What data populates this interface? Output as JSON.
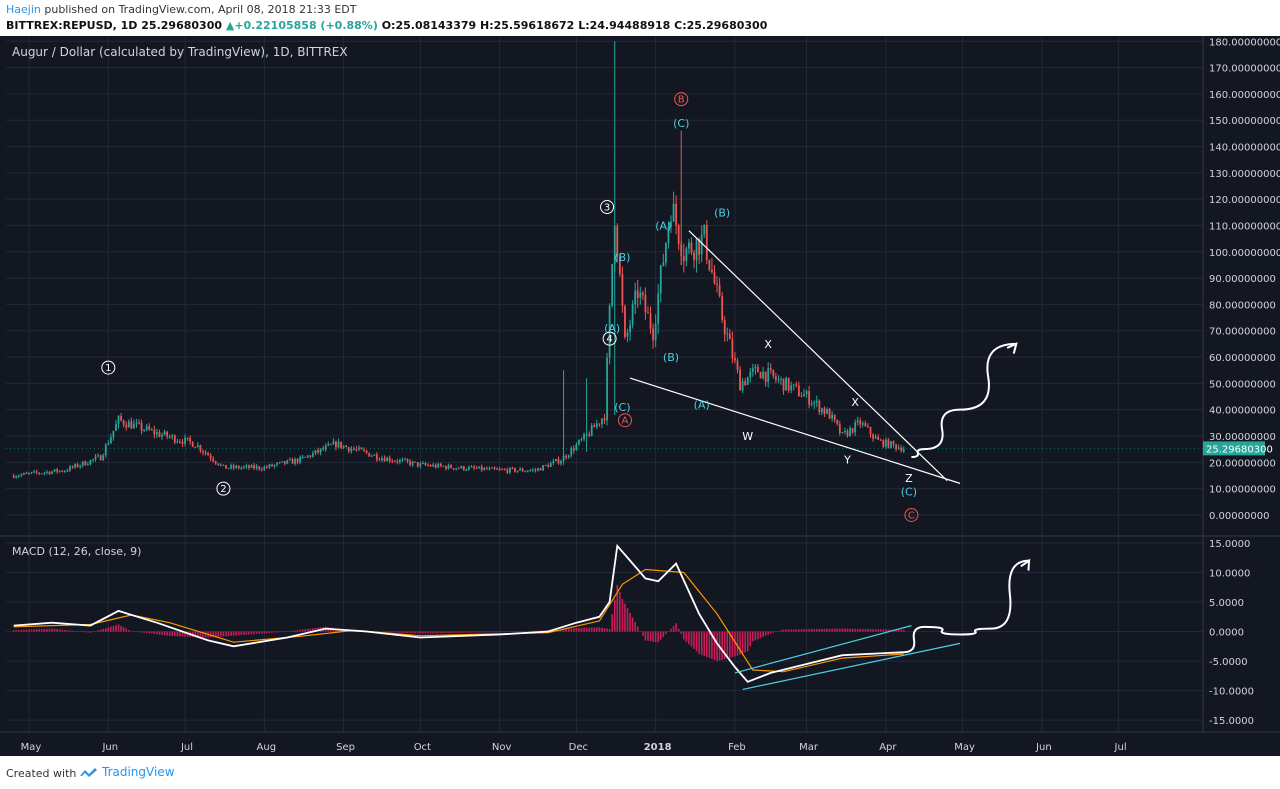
{
  "header": {
    "author": "Haejin",
    "published_text": " published on TradingView.com, April 08, 2018 21:33 EDT",
    "symbol": "BITTREX:REPUSD, 1D",
    "last": "25.29680300",
    "change": "+0.22105858 (+0.88%)",
    "open": "O:25.08143379",
    "high": "H:25.59618672",
    "low": "L:24.94488918",
    "close": "C:25.29680300"
  },
  "colors": {
    "background": "#131722",
    "grid": "#232837",
    "up": "#26a69a",
    "down": "#ef5350",
    "macd_line": "#ffffff",
    "signal_line": "#ff9800",
    "histogram": "#e91e63",
    "wave_cyan": "#4dd0e1",
    "wave_red": "#ef5350",
    "wave_white": "#ffffff",
    "channel": "#4dd0e1"
  },
  "footer": {
    "created_with": "Created with",
    "brand": "TradingView",
    "brand_icon": "tradingview-cloud-icon"
  },
  "chart_data": [
    {
      "type": "candlestick",
      "title": "Augur / Dollar (calculated by TradingView), 1D, BITTREX",
      "x_labels": [
        "May",
        "Jun",
        "Jul",
        "Aug",
        "Sep",
        "Oct",
        "Nov",
        "Dec",
        "2018",
        "Feb",
        "Mar",
        "Apr",
        "May",
        "Jun",
        "Jul"
      ],
      "y_ticks": [
        "180.00000000",
        "170.00000000",
        "160.00000000",
        "150.00000000",
        "140.00000000",
        "130.00000000",
        "120.00000000",
        "110.00000000",
        "100.00000000",
        "90.00000000",
        "80.00000000",
        "70.00000000",
        "60.00000000",
        "50.00000000",
        "40.00000000",
        "30.00000000",
        "20.00000000",
        "10.00000000",
        "0.00000000"
      ],
      "ylim": [
        -8,
        182
      ],
      "last_price_label": "25.29680300",
      "series_close_approx": [
        {
          "x": "2017-04-25",
          "y": 15
        },
        {
          "x": "2017-05-15",
          "y": 17
        },
        {
          "x": "2017-05-29",
          "y": 22
        },
        {
          "x": "2017-06-05",
          "y": 36
        },
        {
          "x": "2017-06-20",
          "y": 31
        },
        {
          "x": "2017-07-05",
          "y": 27
        },
        {
          "x": "2017-07-16",
          "y": 18
        },
        {
          "x": "2017-08-01",
          "y": 18
        },
        {
          "x": "2017-08-15",
          "y": 21
        },
        {
          "x": "2017-08-29",
          "y": 27
        },
        {
          "x": "2017-09-15",
          "y": 22
        },
        {
          "x": "2017-10-01",
          "y": 19
        },
        {
          "x": "2017-10-15",
          "y": 18
        },
        {
          "x": "2017-11-01",
          "y": 17
        },
        {
          "x": "2017-11-15",
          "y": 17
        },
        {
          "x": "2017-11-25",
          "y": 21
        },
        {
          "x": "2017-12-05",
          "y": 30
        },
        {
          "x": "2017-12-12",
          "y": 38
        },
        {
          "x": "2017-12-16",
          "y": 115
        },
        {
          "x": "2017-12-20",
          "y": 65
        },
        {
          "x": "2017-12-25",
          "y": 85
        },
        {
          "x": "2017-12-31",
          "y": 70
        },
        {
          "x": "2018-01-07",
          "y": 118
        },
        {
          "x": "2018-01-12",
          "y": 100
        },
        {
          "x": "2018-01-20",
          "y": 105
        },
        {
          "x": "2018-01-27",
          "y": 75
        },
        {
          "x": "2018-02-03",
          "y": 50
        },
        {
          "x": "2018-02-10",
          "y": 55
        },
        {
          "x": "2018-02-20",
          "y": 50
        },
        {
          "x": "2018-03-01",
          "y": 45
        },
        {
          "x": "2018-03-10",
          "y": 38
        },
        {
          "x": "2018-03-15",
          "y": 30
        },
        {
          "x": "2018-03-22",
          "y": 35
        },
        {
          "x": "2018-03-29",
          "y": 28
        },
        {
          "x": "2018-04-08",
          "y": 25.3
        }
      ],
      "annotations": [
        {
          "text": "1",
          "style": "circle-white",
          "x": "2017-06-01",
          "y": 56
        },
        {
          "text": "2",
          "style": "circle-white",
          "x": "2017-07-16",
          "y": 10
        },
        {
          "text": "3",
          "style": "circle-white",
          "x": "2017-12-13",
          "y": 117
        },
        {
          "text": "4",
          "style": "circle-white",
          "x": "2017-12-14",
          "y": 67
        },
        {
          "text": "(A)",
          "style": "cyan",
          "x": "2017-12-15",
          "y": 71
        },
        {
          "text": "(B)",
          "style": "cyan",
          "x": "2017-12-19",
          "y": 98
        },
        {
          "text": "(C)",
          "style": "cyan",
          "x": "2017-12-19",
          "y": 41
        },
        {
          "text": "A",
          "style": "circle-red",
          "x": "2017-12-20",
          "y": 36
        },
        {
          "text": "(A)",
          "style": "cyan",
          "x": "2018-01-04",
          "y": 110
        },
        {
          "text": "(B)",
          "style": "cyan",
          "x": "2018-01-07",
          "y": 60
        },
        {
          "text": "B",
          "style": "circle-red",
          "x": "2018-01-11",
          "y": 158
        },
        {
          "text": "(C)",
          "style": "cyan",
          "x": "2018-01-11",
          "y": 149
        },
        {
          "text": "(B)",
          "style": "cyan",
          "x": "2018-01-27",
          "y": 115
        },
        {
          "text": "(A)",
          "style": "cyan",
          "x": "2018-01-19",
          "y": 42
        },
        {
          "text": "X",
          "style": "white",
          "x": "2018-02-14",
          "y": 65
        },
        {
          "text": "W",
          "style": "white",
          "x": "2018-02-06",
          "y": 30
        },
        {
          "text": "X",
          "style": "white",
          "x": "2018-03-20",
          "y": 43
        },
        {
          "text": "Y",
          "style": "white",
          "x": "2018-03-17",
          "y": 21
        },
        {
          "text": "Z",
          "style": "white",
          "x": "2018-04-10",
          "y": 14
        },
        {
          "text": "(C)",
          "style": "cyan",
          "x": "2018-04-10",
          "y": 9
        },
        {
          "text": "C",
          "style": "circle-red",
          "x": "2018-04-11",
          "y": 0
        }
      ],
      "trendlines": [
        {
          "from": {
            "x": "2018-01-14",
            "y": 108
          },
          "to": {
            "x": "2018-04-25",
            "y": 13
          }
        },
        {
          "from": {
            "x": "2017-12-22",
            "y": 52
          },
          "to": {
            "x": "2018-04-30",
            "y": 12
          }
        }
      ],
      "projection_arrow": [
        {
          "x": "2018-04-11",
          "y": 22
        },
        {
          "x": "2018-04-16",
          "y": 25
        },
        {
          "x": "2018-04-30",
          "y": 40
        },
        {
          "x": "2018-05-22",
          "y": 65
        }
      ]
    },
    {
      "type": "line",
      "title": "MACD (12, 26, close, 9)",
      "y_ticks": [
        "15.0000",
        "10.0000",
        "5.0000",
        "0.0000",
        "-5.0000",
        "-10.0000",
        "-15.0000"
      ],
      "ylim": [
        -17,
        16
      ],
      "series": [
        {
          "points": [
            {
              "x": "2017-04-25",
              "y": 1.0
            },
            {
              "x": "2017-05-10",
              "y": 1.5
            },
            {
              "x": "2017-05-25",
              "y": 1.0
            },
            {
              "x": "2017-06-05",
              "y": 3.5
            },
            {
              "x": "2017-06-20",
              "y": 1.5
            },
            {
              "x": "2017-07-10",
              "y": -1.5
            },
            {
              "x": "2017-07-20",
              "y": -2.5
            },
            {
              "x": "2017-08-10",
              "y": -1.0
            },
            {
              "x": "2017-08-25",
              "y": 0.5
            },
            {
              "x": "2017-09-10",
              "y": 0.0
            },
            {
              "x": "2017-10-01",
              "y": -1.0
            },
            {
              "x": "2017-11-01",
              "y": -0.5
            },
            {
              "x": "2017-11-20",
              "y": 0.0
            },
            {
              "x": "2017-12-01",
              "y": 1.5
            },
            {
              "x": "2017-12-10",
              "y": 2.5
            },
            {
              "x": "2017-12-14",
              "y": 5.0
            },
            {
              "x": "2017-12-17",
              "y": 14.5
            },
            {
              "x": "2017-12-22",
              "y": 12.0
            },
            {
              "x": "2017-12-28",
              "y": 9.0
            },
            {
              "x": "2018-01-02",
              "y": 8.5
            },
            {
              "x": "2018-01-09",
              "y": 11.5
            },
            {
              "x": "2018-01-18",
              "y": 3.0
            },
            {
              "x": "2018-01-25",
              "y": -2.0
            },
            {
              "x": "2018-02-01",
              "y": -6.0
            },
            {
              "x": "2018-02-06",
              "y": -8.5
            },
            {
              "x": "2018-02-15",
              "y": -7.0
            },
            {
              "x": "2018-03-01",
              "y": -5.5
            },
            {
              "x": "2018-03-15",
              "y": -4.0
            },
            {
              "x": "2018-04-08",
              "y": -3.5
            }
          ]
        },
        {
          "points": [
            {
              "x": "2017-04-25",
              "y": 0.8
            },
            {
              "x": "2017-05-25",
              "y": 1.2
            },
            {
              "x": "2017-06-10",
              "y": 2.8
            },
            {
              "x": "2017-06-25",
              "y": 1.5
            },
            {
              "x": "2017-07-20",
              "y": -1.8
            },
            {
              "x": "2017-08-15",
              "y": -0.8
            },
            {
              "x": "2017-09-05",
              "y": 0.2
            },
            {
              "x": "2017-10-01",
              "y": -0.7
            },
            {
              "x": "2017-11-20",
              "y": -0.2
            },
            {
              "x": "2017-12-10",
              "y": 1.8
            },
            {
              "x": "2017-12-19",
              "y": 8.0
            },
            {
              "x": "2017-12-28",
              "y": 10.5
            },
            {
              "x": "2018-01-12",
              "y": 10.0
            },
            {
              "x": "2018-01-25",
              "y": 3.0
            },
            {
              "x": "2018-02-08",
              "y": -6.5
            },
            {
              "x": "2018-02-20",
              "y": -6.8
            },
            {
              "x": "2018-03-15",
              "y": -4.5
            },
            {
              "x": "2018-04-08",
              "y": -3.8
            }
          ]
        }
      ],
      "channel_lines": [
        {
          "from": {
            "x": "2018-02-01",
            "y": -7.0
          },
          "to": {
            "x": "2018-04-11",
            "y": 1.0
          }
        },
        {
          "from": {
            "x": "2018-02-04",
            "y": -9.8
          },
          "to": {
            "x": "2018-04-30",
            "y": -2.0
          }
        }
      ],
      "projection_arrow": [
        {
          "x": "2018-04-08",
          "y": -3.5
        },
        {
          "x": "2018-04-16",
          "y": 0.8
        },
        {
          "x": "2018-04-30",
          "y": -0.5
        },
        {
          "x": "2018-05-12",
          "y": 0.5
        },
        {
          "x": "2018-05-27",
          "y": 12.0
        }
      ]
    }
  ]
}
